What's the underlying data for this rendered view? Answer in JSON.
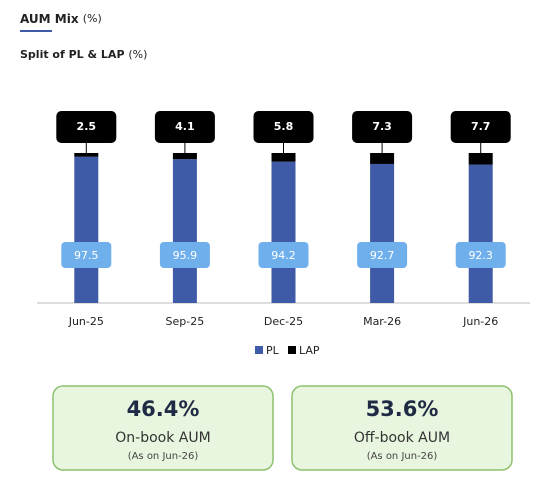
{
  "header": {
    "title": "AUM Mix",
    "title_unit": "(%)",
    "subtitle": "Split of PL & LAP",
    "subtitle_unit": "(%)"
  },
  "chart_data": {
    "type": "stacked_bar",
    "categories": [
      "Jun-25",
      "Sep-25",
      "Dec-25",
      "Mar-26",
      "Jun-26"
    ],
    "series": [
      {
        "name": "PL",
        "color": "#3F5AA6",
        "values": [
          97.5,
          95.9,
          94.2,
          92.7,
          92.3
        ]
      },
      {
        "name": "LAP",
        "color": "#000000",
        "values": [
          2.5,
          4.1,
          5.8,
          7.3,
          7.7
        ]
      }
    ],
    "ylim": [
      0,
      100
    ]
  },
  "cards": [
    {
      "value": "46.4%",
      "label": "On-book AUM",
      "note": "(As on Jun-26)"
    },
    {
      "value": "53.6%",
      "label": "Off-book AUM",
      "note": "(As on Jun-26)"
    }
  ]
}
